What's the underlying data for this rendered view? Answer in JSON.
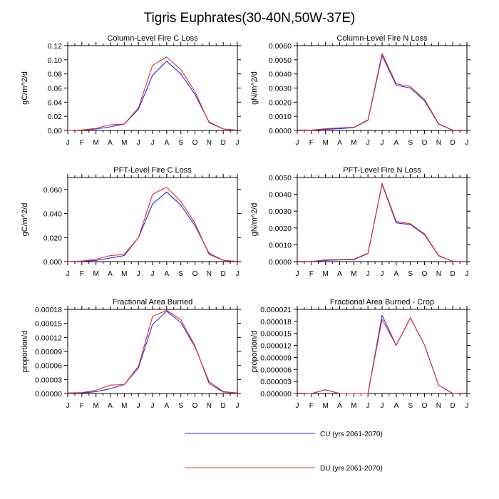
{
  "figure": {
    "title": "Tigris Euphrates(30-40N,50W-37E)",
    "x_tick_labels": [
      "J",
      "F",
      "M",
      "A",
      "M",
      "J",
      "J",
      "A",
      "S",
      "O",
      "N",
      "D",
      "J"
    ],
    "legend": [
      {
        "name": "CU (yrs 2061-2070)",
        "color": "#2a2ae6"
      },
      {
        "name": "DU (yrs 2061-2070)",
        "color": "#e62a2a"
      }
    ]
  },
  "chart_data": [
    {
      "type": "line",
      "title": "Column-Level Fire C Loss",
      "xlabel": "",
      "ylabel": "gC/m^2/d",
      "x": [
        0,
        1,
        2,
        3,
        4,
        5,
        6,
        7,
        8,
        9,
        10,
        11,
        12
      ],
      "ylim": [
        0,
        0.12
      ],
      "yticks": [
        "0.00",
        "0.02",
        "0.04",
        "0.06",
        "0.08",
        "0.10",
        "0.12"
      ],
      "series": [
        {
          "name": "CU (yrs 2061-2070)",
          "values": [
            0.0,
            0.0005,
            0.002,
            0.005,
            0.009,
            0.03,
            0.078,
            0.098,
            0.08,
            0.051,
            0.012,
            0.002,
            0.0003
          ]
        },
        {
          "name": "DU (yrs 2061-2070)",
          "values": [
            0.0,
            0.0007,
            0.003,
            0.008,
            0.009,
            0.032,
            0.092,
            0.104,
            0.086,
            0.055,
            0.011,
            0.002,
            0.0003
          ]
        }
      ]
    },
    {
      "type": "line",
      "title": "Column-Level Fire N Loss",
      "xlabel": "",
      "ylabel": "gN/m^2/d",
      "x": [
        0,
        1,
        2,
        3,
        4,
        5,
        6,
        7,
        8,
        9,
        10,
        11,
        12
      ],
      "ylim": [
        0,
        0.006
      ],
      "yticks": [
        "0.0000",
        "0.0010",
        "0.0020",
        "0.0030",
        "0.0040",
        "0.0050",
        "0.0060"
      ],
      "series": [
        {
          "name": "CU (yrs 2061-2070)",
          "values": [
            3e-05,
            2e-05,
            8e-05,
            0.00012,
            0.0002,
            0.00072,
            0.0053,
            0.0032,
            0.003,
            0.0021,
            0.00045,
            2e-05,
            2e-05
          ]
        },
        {
          "name": "DU (yrs 2061-2070)",
          "values": [
            3e-05,
            2e-05,
            0.00012,
            0.00018,
            0.00022,
            0.00075,
            0.00545,
            0.0033,
            0.0031,
            0.0022,
            0.00048,
            2e-05,
            2e-05
          ]
        }
      ]
    },
    {
      "type": "line",
      "title": "PFT-Level Fire C Loss",
      "xlabel": "",
      "ylabel": "gC/m^2/d",
      "x": [
        0,
        1,
        2,
        3,
        4,
        5,
        6,
        7,
        8,
        9,
        10,
        11,
        12
      ],
      "ylim": [
        0,
        0.07
      ],
      "yticks": [
        "0.000",
        "0.020",
        "0.040",
        "0.060"
      ],
      "ytick_values": [
        0,
        0.02,
        0.04,
        0.06
      ],
      "series": [
        {
          "name": "CU (yrs 2061-2070)",
          "values": [
            0.0,
            0.0003,
            0.001,
            0.003,
            0.005,
            0.02,
            0.048,
            0.058,
            0.047,
            0.03,
            0.007,
            0.001,
            0.0002
          ]
        },
        {
          "name": "DU (yrs 2061-2070)",
          "values": [
            0.0,
            0.0005,
            0.002,
            0.005,
            0.006,
            0.02,
            0.056,
            0.062,
            0.05,
            0.032,
            0.006,
            0.001,
            0.0002
          ]
        }
      ]
    },
    {
      "type": "line",
      "title": "PFT-Level Fire N Loss",
      "xlabel": "",
      "ylabel": "gN/m^2/d",
      "x": [
        0,
        1,
        2,
        3,
        4,
        5,
        6,
        7,
        8,
        9,
        10,
        11,
        12
      ],
      "ylim": [
        0,
        0.005
      ],
      "yticks": [
        "0.0000",
        "0.0010",
        "0.0020",
        "0.0030",
        "0.0040",
        "0.0050"
      ],
      "series": [
        {
          "name": "CU (yrs 2061-2070)",
          "values": [
            2e-05,
            1e-05,
            7e-05,
            0.0001,
            0.00012,
            0.00048,
            0.0046,
            0.0023,
            0.0022,
            0.0016,
            0.00035,
            1e-05,
            1e-05
          ]
        },
        {
          "name": "DU (yrs 2061-2070)",
          "values": [
            2e-05,
            1e-05,
            0.0001,
            0.00012,
            0.00015,
            0.0005,
            0.00465,
            0.0024,
            0.00225,
            0.00165,
            0.00037,
            1e-05,
            1e-05
          ]
        }
      ]
    },
    {
      "type": "line",
      "title": "Fractional Area Burned",
      "xlabel": "",
      "ylabel": "proportion/d",
      "x": [
        0,
        1,
        2,
        3,
        4,
        5,
        6,
        7,
        8,
        9,
        10,
        11,
        12
      ],
      "ylim": [
        0,
        0.00018
      ],
      "yticks": [
        "0.00000",
        "0.00003",
        "0.00006",
        "0.00009",
        "0.00012",
        "0.00015",
        "0.00018"
      ],
      "series": [
        {
          "name": "CU (yrs 2061-2070)",
          "values": [
            1e-06,
            1e-06,
            4e-06,
            1e-05,
            1.9e-05,
            5.5e-05,
            0.000148,
            0.000176,
            0.000152,
            0.0001,
            2.5e-05,
            4e-06,
            1e-06
          ]
        },
        {
          "name": "DU (yrs 2061-2070)",
          "values": [
            1e-06,
            2e-06,
            7e-06,
            1.8e-05,
            1.9e-05,
            5.8e-05,
            0.000165,
            0.000178,
            0.000158,
            0.000102,
            2.1e-05,
            3e-06,
            1e-06
          ]
        }
      ]
    },
    {
      "type": "line",
      "title": "Fractional Area Burned - Crop",
      "xlabel": "",
      "ylabel": "proportion/d",
      "x": [
        0,
        1,
        2,
        3,
        4,
        5,
        6,
        7,
        8,
        9,
        10,
        11,
        12
      ],
      "ylim": [
        0,
        2.1e-05
      ],
      "yticks": [
        "0.000000",
        "0.000003",
        "0.000006",
        "0.000009",
        "0.000012",
        "0.000015",
        "0.000018",
        "0.000021"
      ],
      "series": [
        {
          "name": "CU (yrs 2061-2070)",
          "values": [
            1e-07,
            0.0,
            9e-07,
            0.0,
            0.0,
            0.0,
            1.95e-05,
            1.2e-05,
            1.89e-05,
            1.21e-05,
            2.1e-06,
            0.0,
            1e-07
          ]
        },
        {
          "name": "DU (yrs 2061-2070)",
          "values": [
            1e-07,
            0.0,
            9e-07,
            0.0,
            0.0,
            0.0,
            1.85e-05,
            1.2e-05,
            1.89e-05,
            1.21e-05,
            2.1e-06,
            0.0,
            1e-07
          ]
        }
      ]
    }
  ]
}
